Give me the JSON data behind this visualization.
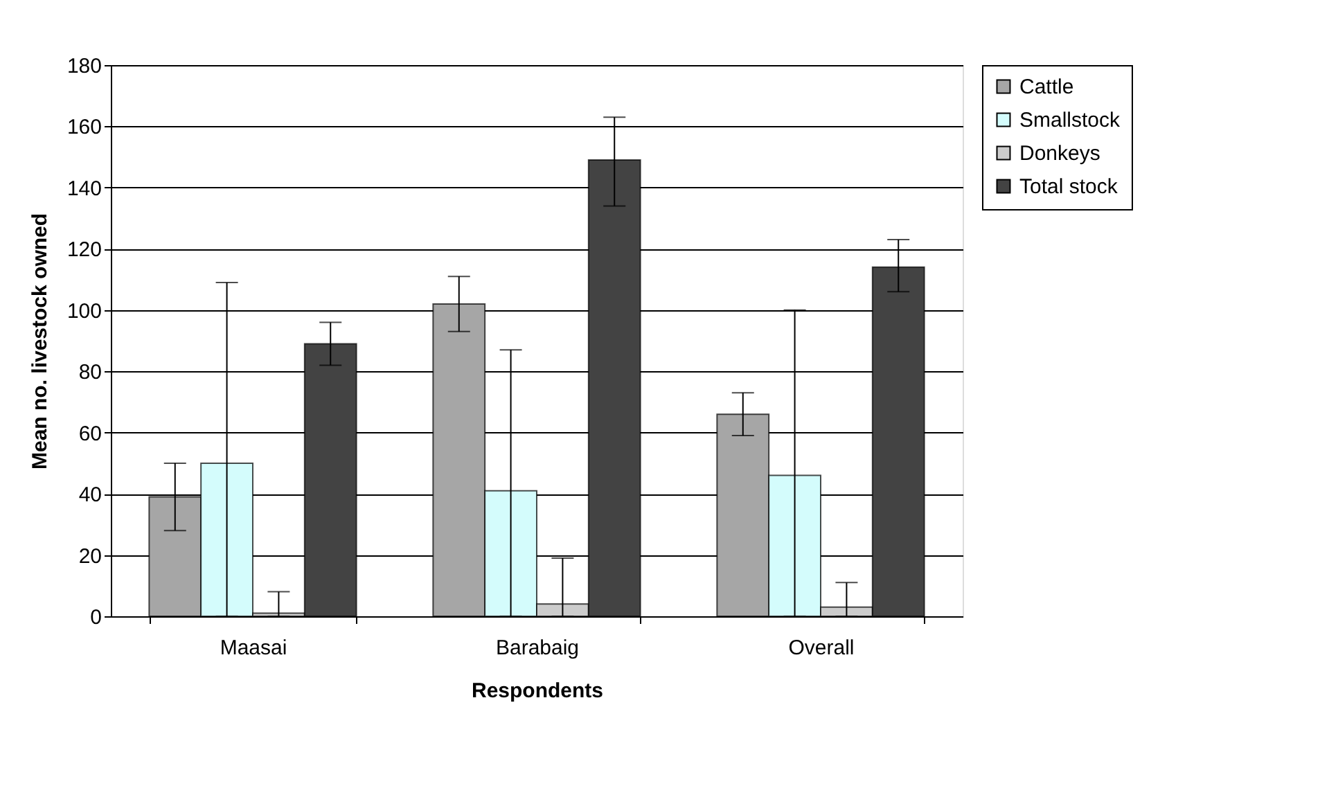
{
  "chart_data": {
    "type": "bar",
    "xlabel": "Respondents",
    "ylabel": "Mean no. livestock owned",
    "categories": [
      "Maasai",
      "Barabaig",
      "Overall"
    ],
    "series": [
      {
        "name": "Cattle",
        "color": "#a6a6a6",
        "values": [
          39,
          102,
          66
        ],
        "errors": [
          [
            28,
            50
          ],
          [
            93,
            111
          ],
          [
            59,
            73
          ]
        ]
      },
      {
        "name": "Smallstock",
        "color": "#d4fcfc",
        "values": [
          50,
          41,
          46
        ],
        "errors": [
          [
            0,
            109
          ],
          [
            0,
            87
          ],
          [
            0,
            100
          ]
        ]
      },
      {
        "name": "Donkeys",
        "color": "#cccccc",
        "values": [
          1,
          4,
          3
        ],
        "errors": [
          [
            0,
            8
          ],
          [
            0,
            19
          ],
          [
            0,
            11
          ]
        ]
      },
      {
        "name": "Total stock",
        "color": "#434343",
        "values": [
          89,
          149,
          114
        ],
        "errors": [
          [
            82,
            96
          ],
          [
            134,
            163
          ],
          [
            106,
            123
          ]
        ]
      }
    ],
    "ylim": [
      0,
      180
    ],
    "yticks": [
      0,
      20,
      40,
      60,
      80,
      100,
      120,
      140,
      160,
      180
    ],
    "grid": "y",
    "legend": "top right"
  }
}
